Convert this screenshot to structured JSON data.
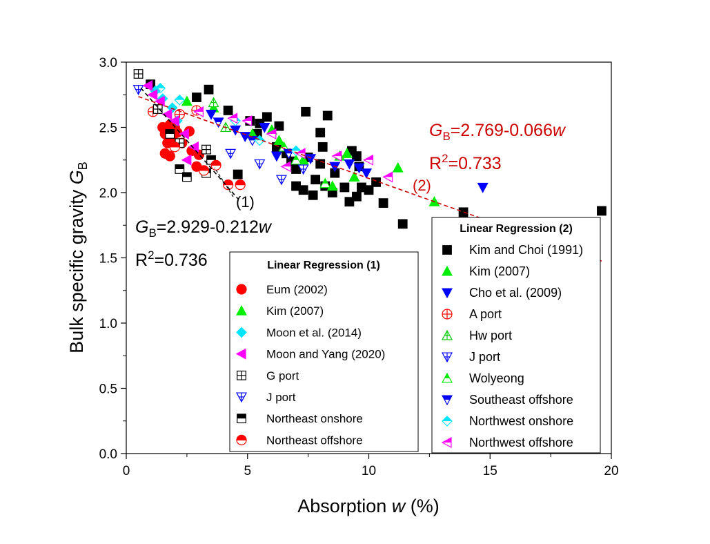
{
  "chart_data": {
    "type": "scatter",
    "xlabel_pre": "Absorption ",
    "xlabel_var": "w",
    "xlabel_post": " (%)",
    "ylabel_pre": "Bulk specific gravity ",
    "ylabel_var": "G",
    "ylabel_sub": "B",
    "xlim": [
      0,
      20
    ],
    "ylim": [
      0,
      3.0
    ],
    "xticks": [
      "0",
      "5",
      "10",
      "15",
      "20"
    ],
    "yticks": [
      "0.0",
      "0.5",
      "1.0",
      "1.5",
      "2.0",
      "2.5",
      "3.0"
    ],
    "grid": false,
    "regressions": [
      {
        "id": "1",
        "label": "(1)",
        "color": "#000000",
        "intercept": 2.929,
        "slope": -0.212,
        "x_range": [
          0.6,
          4.6
        ],
        "eq_var": "G",
        "eq_sub": "B",
        "eq_body": "=2.929-0.212",
        "eq_w": "w",
        "r2_pre": "R",
        "r2_sup": "2",
        "r2_post": "=0.736"
      },
      {
        "id": "2",
        "label": "(2)",
        "color": "#cc0000",
        "intercept": 2.769,
        "slope": -0.066,
        "x_range": [
          0.5,
          19.6
        ],
        "eq_var": "G",
        "eq_sub": "B",
        "eq_body": "=2.769-0.066",
        "eq_w": "w",
        "r2_pre": "R",
        "r2_sup": "2",
        "r2_post": "=0.733"
      }
    ],
    "legends": [
      {
        "title": "Linear Regression (1)",
        "placement": "center",
        "entries": [
          "Eum (2002)",
          "Kim (2007)",
          "Moon et al. (2014)",
          "Moon and Yang (2020)",
          "G port",
          "J port",
          "Northeast onshore",
          "Northeast offshore"
        ]
      },
      {
        "title": "Linear Regression (2)",
        "placement": "bottom-right",
        "entries": [
          "Kim and Choi (1991)",
          "Kim (2007)",
          "Cho et al. (2009)",
          "A port",
          "Hw port",
          "J port",
          "Wolyeong",
          "Southeast offshore",
          "Northwest onshore",
          "Northwest offshore"
        ]
      }
    ],
    "series_style": {
      "Eum (2002)": {
        "marker": "circle",
        "fill": "#ff0000",
        "stroke": "#ff0000"
      },
      "Kim (2007)": {
        "marker": "triangle-up",
        "fill": "#00ee00",
        "stroke": "#00ee00"
      },
      "Moon et al. (2014)": {
        "marker": "diamond",
        "fill": "#00e5ff",
        "stroke": "#00e5ff"
      },
      "Moon and Yang (2020)": {
        "marker": "triangle-left",
        "fill": "#ff00ff",
        "stroke": "#ff00ff"
      },
      "G port": {
        "marker": "square-cross",
        "fill": "#ffffff",
        "stroke": "#000000"
      },
      "J port": {
        "marker": "triangle-down-cross",
        "fill": "#ffffff",
        "stroke": "#0000ff"
      },
      "Northeast onshore": {
        "marker": "square-half",
        "fill": "#000000",
        "stroke": "#000000"
      },
      "Northeast offshore": {
        "marker": "circle-half",
        "fill": "#ff0000",
        "stroke": "#ff0000"
      },
      "Kim and Choi (1991)": {
        "marker": "square",
        "fill": "#000000",
        "stroke": "#000000"
      },
      "Cho et al. (2009)": {
        "marker": "triangle-down",
        "fill": "#0000ff",
        "stroke": "#0000ff"
      },
      "A port": {
        "marker": "circle-cross",
        "fill": "#ffffff",
        "stroke": "#ff0000"
      },
      "Hw port": {
        "marker": "triangle-up-cross",
        "fill": "#ffffff",
        "stroke": "#00cc00"
      },
      "Wolyeong": {
        "marker": "triangle-up-half",
        "fill": "#00ee00",
        "stroke": "#00ee00"
      },
      "Southeast offshore": {
        "marker": "triangle-down-half",
        "fill": "#0000ff",
        "stroke": "#0000ff"
      },
      "Northwest onshore": {
        "marker": "diamond-half",
        "fill": "#00e5ff",
        "stroke": "#00e5ff"
      },
      "Northwest offshore": {
        "marker": "triangle-left-half",
        "fill": "#ff00ff",
        "stroke": "#ff00ff"
      }
    },
    "series": [
      {
        "name": "Kim and Choi (1991)",
        "points": [
          [
            1.0,
            2.83
          ],
          [
            2.9,
            2.73
          ],
          [
            3.4,
            2.79
          ],
          [
            4.2,
            2.63
          ],
          [
            5.1,
            2.55
          ],
          [
            5.5,
            2.53
          ],
          [
            5.8,
            2.58
          ],
          [
            6.2,
            2.35
          ],
          [
            6.6,
            2.3
          ],
          [
            6.8,
            2.24
          ],
          [
            7.0,
            2.18
          ],
          [
            7.0,
            2.05
          ],
          [
            7.3,
            2.02
          ],
          [
            7.4,
            2.62
          ],
          [
            7.5,
            2.27
          ],
          [
            7.7,
            1.98
          ],
          [
            7.8,
            2.1
          ],
          [
            8.0,
            2.22
          ],
          [
            8.0,
            2.46
          ],
          [
            8.1,
            2.35
          ],
          [
            8.2,
            2.05
          ],
          [
            8.3,
            2.59
          ],
          [
            8.5,
            2.0
          ],
          [
            8.6,
            2.15
          ],
          [
            9.0,
            2.04
          ],
          [
            9.2,
            1.93
          ],
          [
            9.3,
            2.32
          ],
          [
            9.5,
            2.28
          ],
          [
            9.5,
            1.97
          ],
          [
            9.6,
            2.2
          ],
          [
            9.7,
            2.04
          ],
          [
            10.0,
            2.02
          ],
          [
            10.3,
            2.08
          ],
          [
            10.6,
            1.92
          ],
          [
            11.4,
            1.76
          ],
          [
            13.9,
            1.85
          ],
          [
            19.6,
            1.86
          ],
          [
            5.4,
            2.45
          ],
          [
            6.3,
            2.51
          ],
          [
            4.6,
            2.14
          ]
        ]
      },
      {
        "name": "Kim (2007)",
        "points": [
          [
            2.5,
            2.7
          ],
          [
            3.6,
            2.65
          ],
          [
            5.2,
            2.45
          ],
          [
            6.0,
            2.48
          ],
          [
            6.3,
            2.4
          ],
          [
            7.3,
            2.25
          ],
          [
            8.8,
            2.28
          ],
          [
            9.1,
            2.3
          ],
          [
            9.4,
            2.12
          ],
          [
            11.2,
            2.19
          ],
          [
            12.7,
            1.93
          ],
          [
            8.5,
            2.05
          ]
        ]
      },
      {
        "name": "Cho et al. (2009)",
        "points": [
          [
            3.5,
            2.6
          ],
          [
            4.5,
            2.48
          ],
          [
            4.9,
            2.43
          ],
          [
            5.7,
            2.5
          ],
          [
            6.2,
            2.28
          ],
          [
            7.6,
            2.26
          ],
          [
            8.6,
            2.2
          ],
          [
            9.2,
            2.22
          ],
          [
            9.6,
            2.19
          ],
          [
            9.9,
            2.15
          ],
          [
            14.7,
            2.04
          ]
        ]
      },
      {
        "name": "A port",
        "points": [
          [
            1.1,
            2.62
          ],
          [
            2.2,
            2.6
          ],
          [
            2.9,
            2.63
          ]
        ]
      },
      {
        "name": "Hw port",
        "points": [
          [
            3.6,
            2.69
          ],
          [
            4.1,
            2.5
          ]
        ]
      },
      {
        "name": "J port",
        "points": [
          [
            0.5,
            2.79
          ],
          [
            4.3,
            2.3
          ],
          [
            5.5,
            2.22
          ],
          [
            6.4,
            2.1
          ],
          [
            7.3,
            2.18
          ]
        ]
      },
      {
        "name": "Wolyeong",
        "points": [
          [
            6.5,
            2.35
          ],
          [
            7.0,
            2.25
          ],
          [
            8.2,
            2.07
          ]
        ]
      },
      {
        "name": "Southeast offshore",
        "points": [
          [
            3.8,
            2.54
          ],
          [
            5.2,
            2.4
          ],
          [
            6.7,
            2.3
          ]
        ]
      },
      {
        "name": "Northwest onshore",
        "points": [
          [
            1.4,
            2.8
          ],
          [
            2.2,
            2.71
          ],
          [
            4.5,
            2.55
          ],
          [
            5.5,
            2.4
          ],
          [
            7.0,
            2.32
          ]
        ]
      },
      {
        "name": "Northwest offshore",
        "points": [
          [
            3.0,
            2.62
          ],
          [
            4.4,
            2.57
          ],
          [
            5.0,
            2.55
          ],
          [
            6.0,
            2.45
          ],
          [
            7.2,
            2.3
          ],
          [
            8.7,
            2.28
          ],
          [
            10.0,
            2.25
          ],
          [
            10.8,
            2.12
          ],
          [
            6.6,
            2.2
          ]
        ]
      },
      {
        "name": "Eum (2002)",
        "points": [
          [
            1.5,
            2.5
          ],
          [
            1.6,
            2.45
          ],
          [
            1.7,
            2.48
          ],
          [
            1.8,
            2.52
          ],
          [
            1.9,
            2.42
          ],
          [
            2.0,
            2.5
          ],
          [
            1.7,
            2.38
          ],
          [
            2.1,
            2.46
          ],
          [
            1.6,
            2.3
          ],
          [
            2.3,
            2.38
          ],
          [
            1.8,
            2.28
          ],
          [
            2.6,
            2.47
          ],
          [
            2.7,
            2.32
          ],
          [
            3.0,
            2.29
          ],
          [
            2.9,
            2.2
          ]
        ]
      },
      {
        "name": "Moon et al. (2014)",
        "points": [
          [
            1.2,
            2.78
          ],
          [
            1.5,
            2.72
          ],
          [
            1.9,
            2.65
          ],
          [
            2.1,
            2.55
          ]
        ]
      },
      {
        "name": "Moon and Yang (2020)",
        "points": [
          [
            0.9,
            2.82
          ],
          [
            1.1,
            2.75
          ],
          [
            1.4,
            2.7
          ],
          [
            1.7,
            2.6
          ],
          [
            2.0,
            2.55
          ],
          [
            2.4,
            2.45
          ],
          [
            2.8,
            2.35
          ],
          [
            2.5,
            2.25
          ]
        ]
      },
      {
        "name": "G port",
        "points": [
          [
            0.5,
            2.91
          ],
          [
            1.3,
            2.64
          ],
          [
            2.2,
            2.38
          ],
          [
            3.3,
            2.33
          ]
        ]
      },
      {
        "name": "Northeast onshore",
        "points": [
          [
            1.8,
            2.45
          ],
          [
            2.2,
            2.18
          ],
          [
            2.5,
            2.12
          ],
          [
            3.3,
            2.15
          ],
          [
            3.5,
            2.25
          ]
        ]
      },
      {
        "name": "Northeast offshore",
        "points": [
          [
            2.0,
            2.35
          ],
          [
            3.2,
            2.17
          ],
          [
            3.7,
            2.21
          ],
          [
            4.2,
            2.06
          ],
          [
            4.7,
            2.06
          ]
        ]
      }
    ]
  }
}
